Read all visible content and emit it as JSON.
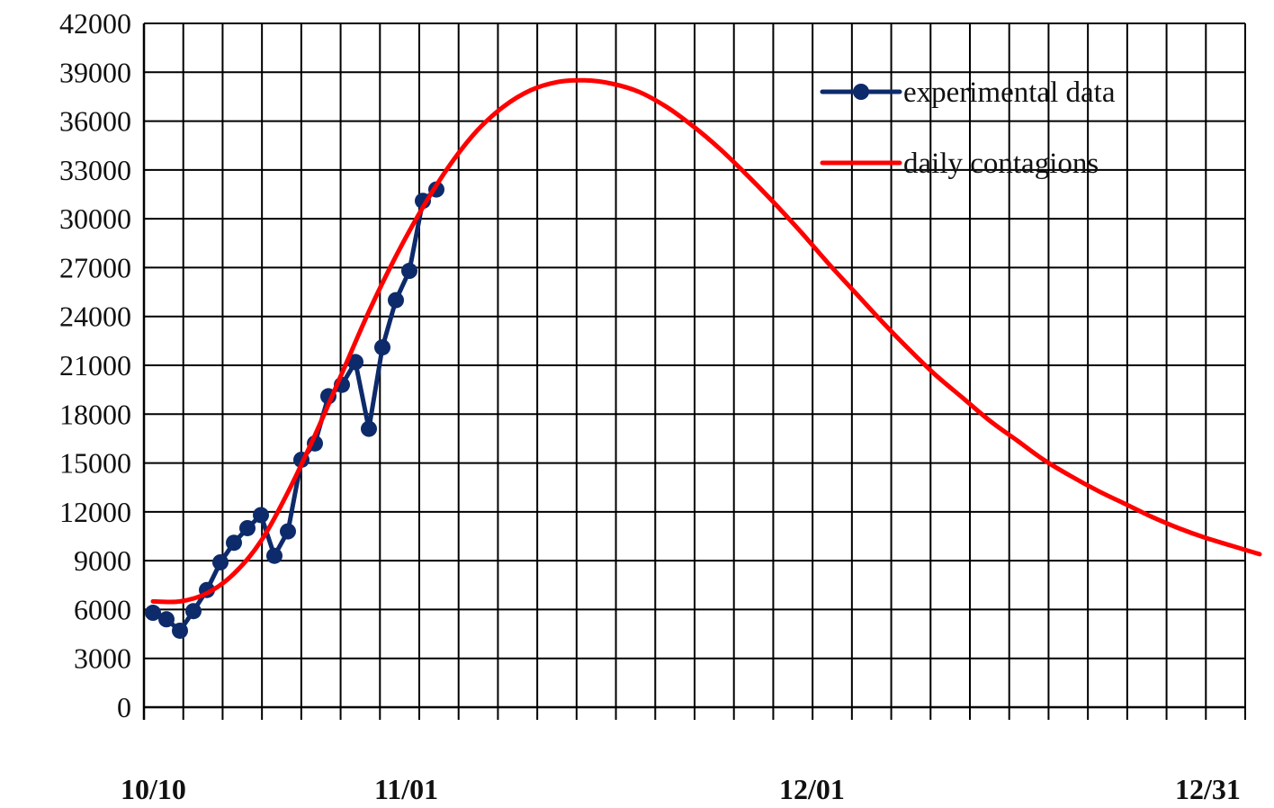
{
  "chart_data": {
    "type": "line",
    "title": "",
    "xlabel": "",
    "ylabel": "",
    "x_range": [
      "10/10",
      "12/31"
    ],
    "ylim": [
      0,
      42000
    ],
    "y_ticks": [
      0,
      3000,
      6000,
      9000,
      12000,
      15000,
      18000,
      21000,
      24000,
      27000,
      30000,
      33000,
      36000,
      39000,
      42000
    ],
    "x_tick_labels": [
      {
        "date": "10/10",
        "label": "10/10"
      },
      {
        "date": "11/01",
        "label": "11/01"
      },
      {
        "date": "12/01",
        "label": "12/01"
      },
      {
        "date": "12/31",
        "label": "12/31"
      }
    ],
    "grid": true,
    "legend_position": "top-right",
    "series": [
      {
        "name": "experimental data",
        "color": "#0d2a6b",
        "marker": "circle",
        "points": [
          [
            "10/10",
            5800
          ],
          [
            "10/11",
            5400
          ],
          [
            "10/12",
            4700
          ],
          [
            "10/13",
            5900
          ],
          [
            "10/14",
            7200
          ],
          [
            "10/15",
            8900
          ],
          [
            "10/16",
            10100
          ],
          [
            "10/17",
            11000
          ],
          [
            "10/18",
            11800
          ],
          [
            "10/19",
            9300
          ],
          [
            "10/20",
            10800
          ],
          [
            "10/21",
            15200
          ],
          [
            "10/22",
            16200
          ],
          [
            "10/23",
            19100
          ],
          [
            "10/24",
            19800
          ],
          [
            "10/25",
            21200
          ],
          [
            "10/26",
            17100
          ],
          [
            "10/27",
            22100
          ],
          [
            "10/28",
            25000
          ],
          [
            "10/29",
            26800
          ],
          [
            "10/30",
            31100
          ],
          [
            "10/31",
            31800
          ]
        ]
      },
      {
        "name": "daily contagions",
        "color": "#ff0000",
        "marker": "none",
        "points": [
          [
            "10/10",
            6500
          ],
          [
            "10/12",
            6500
          ],
          [
            "10/14",
            7000
          ],
          [
            "10/16",
            8200
          ],
          [
            "10/18",
            10200
          ],
          [
            "10/20",
            13200
          ],
          [
            "10/22",
            16700
          ],
          [
            "10/24",
            20500
          ],
          [
            "10/26",
            24300
          ],
          [
            "10/28",
            27700
          ],
          [
            "10/30",
            30700
          ],
          [
            "11/01",
            33300
          ],
          [
            "11/03",
            35400
          ],
          [
            "11/05",
            36900
          ],
          [
            "11/07",
            37900
          ],
          [
            "11/09",
            38400
          ],
          [
            "11/11",
            38500
          ],
          [
            "11/13",
            38300
          ],
          [
            "11/15",
            37800
          ],
          [
            "11/17",
            36900
          ],
          [
            "11/19",
            35700
          ],
          [
            "11/21",
            34300
          ],
          [
            "11/23",
            32700
          ],
          [
            "11/25",
            31000
          ],
          [
            "11/27",
            29200
          ],
          [
            "11/29",
            27300
          ],
          [
            "12/01",
            25500
          ],
          [
            "12/03",
            23700
          ],
          [
            "12/05",
            22000
          ],
          [
            "12/07",
            20400
          ],
          [
            "12/09",
            19000
          ],
          [
            "12/11",
            17600
          ],
          [
            "12/13",
            16400
          ],
          [
            "12/15",
            15200
          ],
          [
            "12/17",
            14200
          ],
          [
            "12/19",
            13300
          ],
          [
            "12/21",
            12500
          ],
          [
            "12/23",
            11700
          ],
          [
            "12/25",
            11000
          ],
          [
            "12/27",
            10400
          ],
          [
            "12/29",
            9900
          ],
          [
            "12/31",
            9400
          ]
        ]
      }
    ]
  }
}
